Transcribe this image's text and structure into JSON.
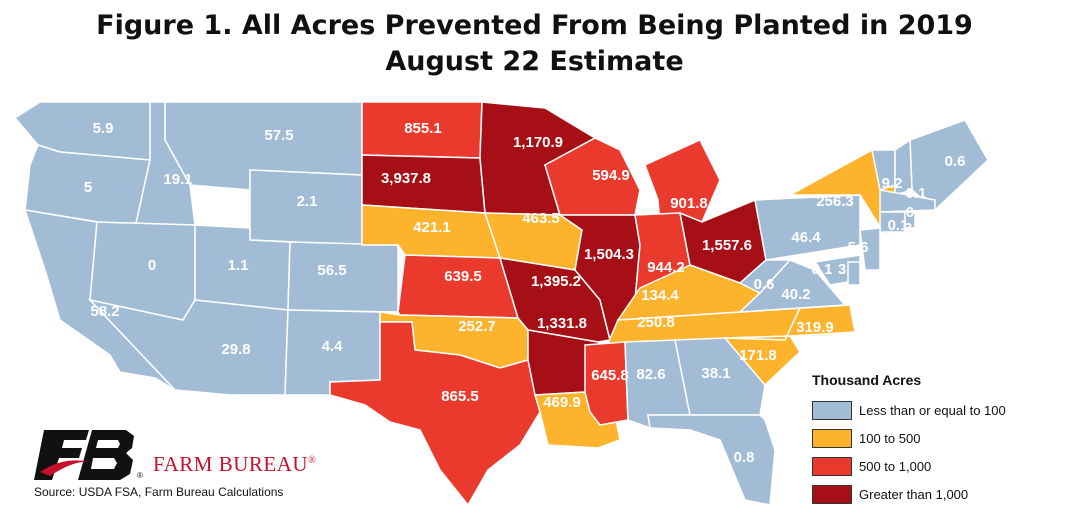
{
  "title_line1": "Figure 1. All Acres Prevented From Being Planted in 2019",
  "title_line2": "August 22 Estimate",
  "legend": {
    "title": "Thousand Acres",
    "items": [
      {
        "label": "Less than or equal to 100",
        "color": "#a3bcd6"
      },
      {
        "label": "100 to 500",
        "color": "#fdb32b"
      },
      {
        "label": "500 to 1,000",
        "color": "#ea3a2e"
      },
      {
        "label": "Greater than 1,000",
        "color": "#a50f15"
      }
    ]
  },
  "source": "Source: USDA FSA, Farm Bureau Calculations",
  "organization": "FARM BUREAU",
  "states": [
    {
      "state": "WA",
      "value": "5.9",
      "category": "low"
    },
    {
      "state": "OR",
      "value": "5",
      "category": "low"
    },
    {
      "state": "CA",
      "value": "58.2",
      "category": "low"
    },
    {
      "state": "ID",
      "value": "19.1",
      "category": "low"
    },
    {
      "state": "NV",
      "value": "0",
      "category": "low"
    },
    {
      "state": "MT",
      "value": "57.5",
      "category": "low"
    },
    {
      "state": "WY",
      "value": "2.1",
      "category": "low"
    },
    {
      "state": "UT",
      "value": "1.1",
      "category": "low"
    },
    {
      "state": "CO",
      "value": "56.5",
      "category": "low"
    },
    {
      "state": "AZ",
      "value": "29.8",
      "category": "low"
    },
    {
      "state": "NM",
      "value": "4.4",
      "category": "low"
    },
    {
      "state": "ND",
      "value": "855.1",
      "category": "high"
    },
    {
      "state": "SD",
      "value": "3,937.8",
      "category": "very_high"
    },
    {
      "state": "NE",
      "value": "421.1",
      "category": "mid"
    },
    {
      "state": "KS",
      "value": "639.5",
      "category": "high"
    },
    {
      "state": "OK",
      "value": "252.7",
      "category": "mid"
    },
    {
      "state": "TX",
      "value": "865.5",
      "category": "high"
    },
    {
      "state": "MN",
      "value": "1,170.9",
      "category": "very_high"
    },
    {
      "state": "IA",
      "value": "463.5",
      "category": "mid"
    },
    {
      "state": "MO",
      "value": "1,395.2",
      "category": "very_high"
    },
    {
      "state": "AR",
      "value": "1,331.8",
      "category": "very_high"
    },
    {
      "state": "LA",
      "value": "469.9",
      "category": "mid"
    },
    {
      "state": "WI",
      "value": "594.9",
      "category": "high"
    },
    {
      "state": "IL",
      "value": "1,504.3",
      "category": "very_high"
    },
    {
      "state": "MI",
      "value": "901.8",
      "category": "high"
    },
    {
      "state": "IN",
      "value": "944.2",
      "category": "high"
    },
    {
      "state": "OH",
      "value": "1,557.6",
      "category": "very_high"
    },
    {
      "state": "KY",
      "value": "134.4",
      "category": "mid"
    },
    {
      "state": "TN",
      "value": "250.8",
      "category": "mid"
    },
    {
      "state": "MS",
      "value": "645.8",
      "category": "high"
    },
    {
      "state": "AL",
      "value": "82.6",
      "category": "low"
    },
    {
      "state": "GA",
      "value": "38.1",
      "category": "low"
    },
    {
      "state": "FL",
      "value": "0.8",
      "category": "low"
    },
    {
      "state": "SC",
      "value": "171.8",
      "category": "mid"
    },
    {
      "state": "NC",
      "value": "319.9",
      "category": "mid"
    },
    {
      "state": "VA",
      "value": "40.2",
      "category": "low"
    },
    {
      "state": "WV",
      "value": "0.6",
      "category": "low"
    },
    {
      "state": "PA",
      "value": "46.4",
      "category": "low"
    },
    {
      "state": "NY",
      "value": "256.3",
      "category": "mid"
    },
    {
      "state": "ME",
      "value": "0.6",
      "category": "low"
    },
    {
      "state": "VT",
      "value": "9.2",
      "category": "low"
    },
    {
      "state": "NH",
      "value": "0.1",
      "category": "low"
    },
    {
      "state": "MA",
      "value": "0",
      "category": "low"
    },
    {
      "state": "CT",
      "value": "0.1",
      "category": "low"
    },
    {
      "state": "RI",
      "value": "3",
      "category": "low"
    },
    {
      "state": "NJ",
      "value": "5.6",
      "category": "low"
    },
    {
      "state": "MD",
      "value": "8.1",
      "category": "low"
    },
    {
      "state": "DE",
      "value": "3",
      "category": "low"
    }
  ]
}
